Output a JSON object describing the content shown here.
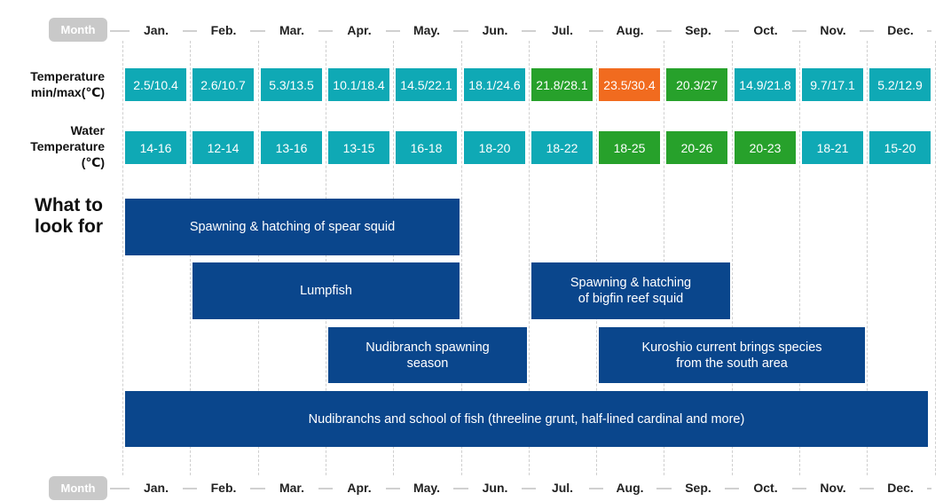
{
  "header": {
    "month_label": "Month"
  },
  "footer": {
    "month_label": "Month"
  },
  "months": [
    "Jan.",
    "Feb.",
    "Mar.",
    "Apr.",
    "May.",
    "Jun.",
    "Jul.",
    "Aug.",
    "Sep.",
    "Oct.",
    "Nov.",
    "Dec."
  ],
  "rows": {
    "air_temp": {
      "label_line1": "Temperature",
      "label_line2": "min/max(℃)"
    },
    "water_temp": {
      "label_line1": "Water",
      "label_line2": "Temperature",
      "label_line3": "(℃)"
    }
  },
  "section": {
    "title_line1": "What to",
    "title_line2": "look for"
  },
  "colors": {
    "teal": "#0fa9b5",
    "green": "#27a12b",
    "orange": "#f16b1f",
    "navy": "#0a468c",
    "month_pill": "#c9c9c9"
  },
  "chart_data": {
    "type": "table",
    "categories": [
      "Jan.",
      "Feb.",
      "Mar.",
      "Apr.",
      "May.",
      "Jun.",
      "Jul.",
      "Aug.",
      "Sep.",
      "Oct.",
      "Nov.",
      "Dec."
    ],
    "air_temperature": [
      {
        "text": "2.5/10.4",
        "min": 2.5,
        "max": 10.4,
        "color": "teal"
      },
      {
        "text": "2.6/10.7",
        "min": 2.6,
        "max": 10.7,
        "color": "teal"
      },
      {
        "text": "5.3/13.5",
        "min": 5.3,
        "max": 13.5,
        "color": "teal"
      },
      {
        "text": "10.1/18.4",
        "min": 10.1,
        "max": 18.4,
        "color": "teal"
      },
      {
        "text": "14.5/22.1",
        "min": 14.5,
        "max": 22.1,
        "color": "teal"
      },
      {
        "text": "18.1/24.6",
        "min": 18.1,
        "max": 24.6,
        "color": "teal"
      },
      {
        "text": "21.8/28.1",
        "min": 21.8,
        "max": 28.1,
        "color": "green"
      },
      {
        "text": "23.5/30.4",
        "min": 23.5,
        "max": 30.4,
        "color": "orange"
      },
      {
        "text": "20.3/27",
        "min": 20.3,
        "max": 27,
        "color": "green"
      },
      {
        "text": "14.9/21.8",
        "min": 14.9,
        "max": 21.8,
        "color": "teal"
      },
      {
        "text": "9.7/17.1",
        "min": 9.7,
        "max": 17.1,
        "color": "teal"
      },
      {
        "text": "5.2/12.9",
        "min": 5.2,
        "max": 12.9,
        "color": "teal"
      }
    ],
    "water_temperature": [
      {
        "text": "14-16",
        "color": "teal"
      },
      {
        "text": "12-14",
        "color": "teal"
      },
      {
        "text": "13-16",
        "color": "teal"
      },
      {
        "text": "13-15",
        "color": "teal"
      },
      {
        "text": "16-18",
        "color": "teal"
      },
      {
        "text": "18-20",
        "color": "teal"
      },
      {
        "text": "18-22",
        "color": "teal"
      },
      {
        "text": "18-25",
        "color": "green"
      },
      {
        "text": "20-26",
        "color": "green"
      },
      {
        "text": "20-23",
        "color": "green"
      },
      {
        "text": "18-21",
        "color": "teal"
      },
      {
        "text": "15-20",
        "color": "teal"
      }
    ],
    "events": [
      {
        "lines": [
          "Spawning & hatching of spear squid"
        ],
        "start": "Jan.",
        "end": "May."
      },
      {
        "lines": [
          "Lumpfish"
        ],
        "start": "Feb.",
        "end": "May."
      },
      {
        "lines": [
          "Spawning & hatching",
          "of bigfin reef squid"
        ],
        "start": "Jul.",
        "end": "Sep."
      },
      {
        "lines": [
          "Nudibranch spawning",
          "season"
        ],
        "start": "Apr.",
        "end": "Jun."
      },
      {
        "lines": [
          "Kuroshio current brings species",
          "from the south area"
        ],
        "start": "Aug.",
        "end": "Nov."
      },
      {
        "lines": [
          "Nudibranchs and school of fish (threeline grunt, half-lined cardinal and more)"
        ],
        "start": "Jan.",
        "end": "Dec."
      }
    ]
  }
}
